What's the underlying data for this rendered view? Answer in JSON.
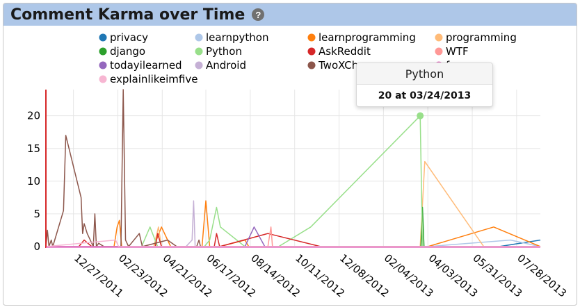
{
  "widget": {
    "title": "Comment Karma over Time",
    "help_icon": "?"
  },
  "tooltip": {
    "series": "Python",
    "text": "20 at 03/24/2013"
  },
  "chart_data": {
    "type": "line",
    "ylim": [
      0,
      24
    ],
    "yticks": [
      0,
      5,
      10,
      15,
      20
    ],
    "xticks": [
      "12/27/2011",
      "02/23/2012",
      "04/21/2012",
      "06/17/2012",
      "08/14/2012",
      "10/11/2012",
      "12/08/2012",
      "02/04/2013",
      "04/03/2013",
      "05/31/2013",
      "07/28/2013"
    ],
    "xlim": [
      "2011-11-21",
      "2013-08-28"
    ],
    "legend": {
      "placement": "top"
    },
    "series": [
      {
        "name": "privacy",
        "color": "#1f77b4",
        "points": [
          [
            "2013-07-05",
            0
          ],
          [
            "2013-08-28",
            1
          ]
        ]
      },
      {
        "name": "learnpython",
        "color": "#aec7e8",
        "points": [
          [
            "2013-04-03",
            0
          ],
          [
            "2013-07-20",
            1
          ],
          [
            "2013-08-28",
            0
          ]
        ]
      },
      {
        "name": "learnprogramming",
        "color": "#ff7f0e",
        "points": [
          [
            "2011-11-21",
            0
          ],
          [
            "2012-02-18",
            0
          ],
          [
            "2012-02-22",
            3
          ],
          [
            "2012-02-25",
            4
          ],
          [
            "2012-02-28",
            0
          ],
          [
            "2012-04-10",
            0
          ],
          [
            "2012-04-20",
            3
          ],
          [
            "2012-05-02",
            0
          ],
          [
            "2012-06-12",
            0
          ],
          [
            "2012-06-17",
            7
          ],
          [
            "2012-06-22",
            0
          ],
          [
            "2012-07-05",
            0
          ],
          [
            "2012-08-07",
            1
          ],
          [
            "2012-08-12",
            0
          ],
          [
            "2013-04-03",
            0
          ],
          [
            "2013-06-28",
            3
          ],
          [
            "2013-08-28",
            0
          ]
        ]
      },
      {
        "name": "programming",
        "color": "#ffbb78",
        "points": [
          [
            "2011-11-21",
            0
          ],
          [
            "2012-04-10",
            0
          ],
          [
            "2012-04-16",
            3
          ],
          [
            "2012-04-20",
            0
          ],
          [
            "2013-03-24",
            0
          ],
          [
            "2013-03-30",
            13
          ],
          [
            "2013-06-15",
            0
          ],
          [
            "2013-08-28",
            0
          ]
        ]
      },
      {
        "name": "django",
        "color": "#2ca02c",
        "points": [
          [
            "2013-03-25",
            0
          ],
          [
            "2013-03-27",
            6
          ],
          [
            "2013-03-29",
            0
          ]
        ]
      },
      {
        "name": "Python",
        "color": "#98df8a",
        "points": [
          [
            "2011-11-21",
            0
          ],
          [
            "2012-03-25",
            0
          ],
          [
            "2012-04-05",
            3
          ],
          [
            "2012-04-15",
            0
          ],
          [
            "2012-06-15",
            0
          ],
          [
            "2012-06-22",
            1
          ],
          [
            "2012-07-01",
            6
          ],
          [
            "2012-07-06",
            3
          ],
          [
            "2012-08-07",
            0
          ],
          [
            "2012-09-20",
            0
          ],
          [
            "2012-11-01",
            3
          ],
          [
            "2013-03-24",
            20
          ],
          [
            "2013-03-27",
            0
          ],
          [
            "2013-04-10",
            0
          ],
          [
            "2013-08-28",
            0
          ]
        ]
      },
      {
        "name": "AskReddit",
        "color": "#d62728",
        "points": [
          [
            "2011-11-21",
            0
          ],
          [
            "2012-01-03",
            0
          ],
          [
            "2012-01-10",
            1
          ],
          [
            "2012-01-20",
            0
          ],
          [
            "2012-04-12",
            0
          ],
          [
            "2012-04-15",
            2
          ],
          [
            "2012-04-20",
            0
          ],
          [
            "2012-06-28",
            0
          ],
          [
            "2012-07-01",
            2
          ],
          [
            "2012-07-05",
            0
          ],
          [
            "2012-09-06",
            2
          ],
          [
            "2012-11-14",
            0
          ],
          [
            "2013-08-28",
            0
          ]
        ]
      },
      {
        "name": "WTF",
        "color": "#ff9896",
        "points": [
          [
            "2011-11-21",
            0
          ],
          [
            "2012-09-06",
            0
          ],
          [
            "2012-09-10",
            3
          ],
          [
            "2012-09-12",
            0
          ],
          [
            "2013-08-28",
            0
          ]
        ]
      },
      {
        "name": "todayilearned",
        "color": "#9467bd",
        "points": [
          [
            "2011-11-21",
            0
          ],
          [
            "2012-08-07",
            0
          ],
          [
            "2012-08-19",
            3
          ],
          [
            "2012-09-02",
            0
          ],
          [
            "2013-08-28",
            0
          ]
        ]
      },
      {
        "name": "Android",
        "color": "#c5b0d5",
        "points": [
          [
            "2011-11-21",
            0
          ],
          [
            "2012-05-22",
            0
          ],
          [
            "2012-05-30",
            1
          ],
          [
            "2012-06-01",
            7
          ],
          [
            "2012-06-03",
            0
          ],
          [
            "2012-06-20",
            0
          ],
          [
            "2013-08-28",
            0
          ]
        ]
      },
      {
        "name": "TwoXChromosomes",
        "color": "#8c564b",
        "points": [
          [
            "2011-11-21",
            0
          ],
          [
            "2011-11-23",
            2.5
          ],
          [
            "2011-11-25",
            0
          ],
          [
            "2011-11-28",
            1
          ],
          [
            "2011-11-30",
            0
          ],
          [
            "2011-12-14",
            5.5
          ],
          [
            "2011-12-17",
            17
          ],
          [
            "2012-01-06",
            7.5
          ],
          [
            "2012-01-08",
            2
          ],
          [
            "2012-01-10",
            3.5
          ],
          [
            "2012-01-14",
            2
          ],
          [
            "2012-01-18",
            1
          ],
          [
            "2012-01-22",
            0
          ],
          [
            "2012-01-24",
            5
          ],
          [
            "2012-01-26",
            0
          ],
          [
            "2012-01-29",
            0.5
          ],
          [
            "2012-02-05",
            0
          ],
          [
            "2012-02-27",
            0
          ],
          [
            "2012-03-01",
            24
          ],
          [
            "2012-03-04",
            1
          ],
          [
            "2012-03-08",
            0
          ],
          [
            "2012-03-22",
            2
          ],
          [
            "2012-03-26",
            0
          ],
          [
            "2012-04-28",
            1
          ],
          [
            "2012-05-10",
            0
          ],
          [
            "2012-06-05",
            0
          ],
          [
            "2012-06-08",
            1
          ],
          [
            "2012-06-10",
            0
          ],
          [
            "2013-08-28",
            0
          ]
        ]
      },
      {
        "name": "funny",
        "color": "#e377c2",
        "points": [
          [
            "2011-11-21",
            0
          ],
          [
            "2013-08-28",
            0
          ]
        ]
      },
      {
        "name": "explainlikeimfive",
        "color": "#f7b6d2",
        "points": [
          [
            "2011-11-21",
            0
          ],
          [
            "2012-02-20",
            1
          ],
          [
            "2012-02-24",
            0
          ],
          [
            "2013-08-28",
            0
          ]
        ]
      }
    ],
    "highlight": {
      "series": "Python",
      "x": "2013-03-24",
      "y": 20
    }
  }
}
